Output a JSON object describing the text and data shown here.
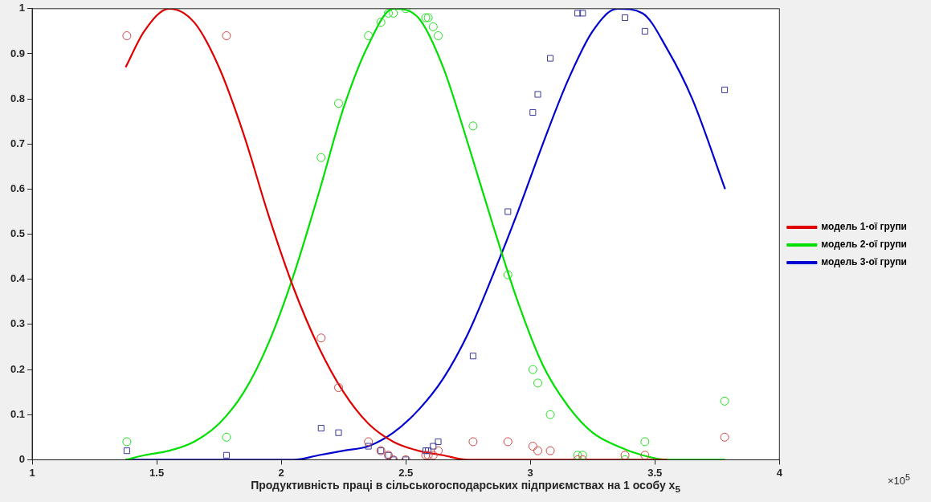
{
  "chart_data": {
    "type": "scatter",
    "xlabel": "Продуктивність праці в сільськогосподарських підприємствах на 1 особу x$_{5}$",
    "annotations": [
      "×10$^{5}$"
    ],
    "xlim": [
      1,
      4
    ],
    "xticks": [
      1,
      1.5,
      2,
      2.5,
      3,
      3.5,
      4
    ],
    "ylim": [
      0,
      1
    ],
    "yticks": [
      0,
      0.1,
      0.2,
      0.3,
      0.4,
      0.5,
      0.6,
      0.7,
      0.8,
      0.9,
      1
    ],
    "legend": "right",
    "series": [
      {
        "type": "scatter",
        "marker": "circle",
        "color": "#d04848",
        "x": [
          1.38,
          1.78,
          2.16,
          2.23,
          2.35,
          2.4,
          2.43,
          2.45,
          2.5,
          2.58,
          2.59,
          2.61,
          2.63,
          2.77,
          2.91,
          3.01,
          3.03,
          3.08,
          3.19,
          3.21,
          3.38,
          3.46,
          3.78
        ],
        "values": [
          0.94,
          0.94,
          0.27,
          0.16,
          0.04,
          0.02,
          0.01,
          0.0,
          0.0,
          0.01,
          0.01,
          0.01,
          0.02,
          0.04,
          0.04,
          0.03,
          0.02,
          0.02,
          0.0,
          0.0,
          0.01,
          0.01,
          0.05
        ]
      },
      {
        "type": "scatter",
        "marker": "circle",
        "color": "#20e020",
        "x": [
          1.38,
          1.78,
          2.16,
          2.23,
          2.35,
          2.4,
          2.43,
          2.45,
          2.5,
          2.58,
          2.59,
          2.61,
          2.63,
          2.77,
          2.91,
          3.01,
          3.03,
          3.08,
          3.19,
          3.21,
          3.38,
          3.46,
          3.78
        ],
        "values": [
          0.04,
          0.05,
          0.67,
          0.79,
          0.94,
          0.97,
          0.99,
          0.99,
          1.0,
          0.98,
          0.98,
          0.96,
          0.94,
          0.74,
          0.41,
          0.2,
          0.17,
          0.1,
          0.01,
          0.01,
          0.0,
          0.04,
          0.13
        ]
      },
      {
        "type": "scatter",
        "marker": "square",
        "color": "#3a3a9a",
        "x": [
          1.38,
          1.78,
          2.16,
          2.23,
          2.35,
          2.4,
          2.43,
          2.45,
          2.5,
          2.58,
          2.59,
          2.61,
          2.63,
          2.77,
          2.91,
          3.01,
          3.03,
          3.08,
          3.19,
          3.21,
          3.38,
          3.46,
          3.78
        ],
        "values": [
          0.02,
          0.01,
          0.07,
          0.06,
          0.03,
          0.02,
          0.01,
          0.0,
          0.0,
          0.02,
          0.02,
          0.03,
          0.04,
          0.23,
          0.55,
          0.77,
          0.81,
          0.89,
          0.99,
          0.99,
          0.98,
          0.95,
          0.82
        ]
      },
      {
        "type": "line",
        "marker": "none",
        "name": "модель 1-ої групи",
        "color": "#e00000",
        "x": [
          1.375,
          1.45,
          1.55,
          1.65,
          1.75,
          1.85,
          1.95,
          2.05,
          2.15,
          2.25,
          2.35,
          2.45,
          2.55,
          2.65,
          2.75,
          2.85,
          2.95,
          3.05,
          3.15,
          3.25,
          3.35,
          3.45,
          3.55
        ],
        "values": [
          0.87,
          0.95,
          1.0,
          0.97,
          0.87,
          0.72,
          0.54,
          0.38,
          0.25,
          0.15,
          0.08,
          0.04,
          0.02,
          0.01,
          0.0,
          0.0,
          0.0,
          0.0,
          0.0,
          0.0,
          0.0,
          0.0,
          0.0
        ]
      },
      {
        "type": "line",
        "marker": "none",
        "name": "модель 2-ої групи",
        "color": "#00e000",
        "x": [
          1.375,
          1.45,
          1.55,
          1.65,
          1.75,
          1.85,
          1.95,
          2.05,
          2.15,
          2.25,
          2.35,
          2.45,
          2.55,
          2.65,
          2.75,
          2.85,
          2.95,
          3.05,
          3.15,
          3.25,
          3.35,
          3.45,
          3.55,
          3.65,
          3.782
        ],
        "values": [
          0.0,
          0.01,
          0.02,
          0.04,
          0.08,
          0.15,
          0.26,
          0.41,
          0.59,
          0.78,
          0.92,
          1.0,
          0.98,
          0.87,
          0.7,
          0.52,
          0.35,
          0.21,
          0.12,
          0.06,
          0.03,
          0.01,
          0.0,
          0.0,
          0.0
        ]
      },
      {
        "type": "line",
        "marker": "none",
        "name": "модель 3-ої групи",
        "color": "#0000d0",
        "x": [
          1.375,
          1.45,
          1.55,
          1.65,
          1.75,
          1.85,
          1.95,
          2.05,
          2.15,
          2.25,
          2.35,
          2.45,
          2.55,
          2.65,
          2.75,
          2.85,
          2.95,
          3.05,
          3.15,
          3.25,
          3.35,
          3.45,
          3.55,
          3.65,
          3.782
        ],
        "values": [
          0.0,
          0.0,
          0.0,
          0.0,
          0.0,
          0.0,
          0.0,
          0.0,
          0.01,
          0.02,
          0.03,
          0.06,
          0.11,
          0.18,
          0.28,
          0.41,
          0.55,
          0.7,
          0.84,
          0.95,
          1.0,
          0.99,
          0.91,
          0.8,
          0.6
        ]
      }
    ]
  }
}
